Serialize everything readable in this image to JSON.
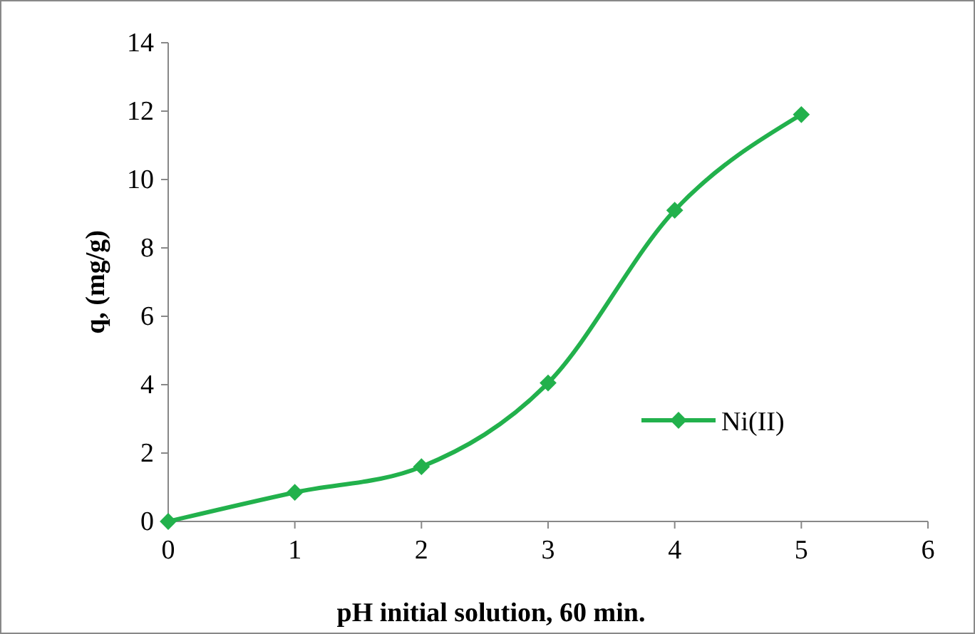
{
  "chart_data": {
    "type": "line",
    "xlabel": "pH initial solution, 60 min.",
    "ylabel": "q, (mg/g)",
    "x": [
      0,
      1,
      2,
      3,
      4,
      5
    ],
    "series": [
      {
        "name": "Ni(II)",
        "color": "#22b14c",
        "values": [
          0,
          0.85,
          1.6,
          4.05,
          9.1,
          11.9
        ]
      }
    ],
    "xlim": [
      0,
      6
    ],
    "xticks": [
      0,
      1,
      2,
      3,
      4,
      5,
      6
    ],
    "ylim": [
      0,
      14
    ],
    "yticks": [
      0,
      2,
      4,
      6,
      8,
      10,
      12,
      14
    ],
    "grid": false,
    "legend": "right",
    "marker": "diamond",
    "line_style": "solid"
  }
}
